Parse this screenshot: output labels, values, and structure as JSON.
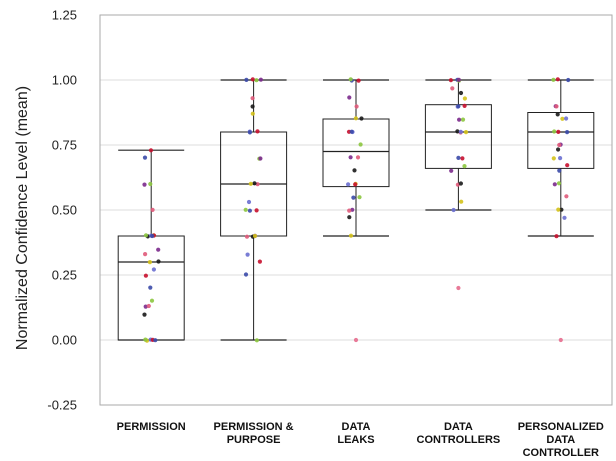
{
  "chart_data": {
    "type": "boxplot",
    "title": "",
    "xlabel": "",
    "ylabel": "Normalized Confidence Level (mean)",
    "ylim": [
      -0.25,
      1.25
    ],
    "yticks": [
      -0.25,
      0.0,
      0.25,
      0.5,
      0.75,
      1.0,
      1.25
    ],
    "ytick_labels": [
      "-0.25",
      "0.00",
      "0.25",
      "0.50",
      "0.75",
      "1.00",
      "1.25"
    ],
    "grid": "horizontal",
    "point_colors": [
      "#c8102e",
      "#3b4aa8",
      "#8cc63f",
      "#7b2a8c",
      "#e05a7a",
      "#1a1a1a",
      "#d4c21a",
      "#6a6fd0"
    ],
    "categories": [
      {
        "label": [
          "PERMISSION"
        ],
        "box": {
          "whisker_low": 0.0,
          "q1": 0.0,
          "median": 0.3,
          "q3": 0.4,
          "whisker_high": 0.73
        },
        "outliers": [],
        "points": [
          0.73,
          0.7,
          0.6,
          0.6,
          0.5,
          0.4,
          0.4,
          0.4,
          0.4,
          0.4,
          0.4,
          0.35,
          0.33,
          0.3,
          0.3,
          0.27,
          0.25,
          0.2,
          0.15,
          0.13,
          0.13,
          0.1,
          0.0,
          0.0,
          0.0,
          0.0,
          0.0
        ]
      },
      {
        "label": [
          "PERMISSION &",
          "PURPOSE"
        ],
        "box": {
          "whisker_low": 0.0,
          "q1": 0.4,
          "median": 0.6,
          "q3": 0.8,
          "whisker_high": 1.0
        },
        "outliers": [],
        "points": [
          1.0,
          1.0,
          1.0,
          1.0,
          0.93,
          0.9,
          0.87,
          0.8,
          0.8,
          0.8,
          0.7,
          0.7,
          0.6,
          0.6,
          0.6,
          0.53,
          0.5,
          0.5,
          0.5,
          0.4,
          0.4,
          0.4,
          0.4,
          0.33,
          0.3,
          0.25,
          0.0
        ]
      },
      {
        "label": [
          "DATA",
          "LEAKS"
        ],
        "box": {
          "whisker_low": 0.4,
          "q1": 0.59,
          "median": 0.725,
          "q3": 0.85,
          "whisker_high": 1.0
        },
        "outliers": [
          0.0
        ],
        "points": [
          1.0,
          1.0,
          1.0,
          0.93,
          0.9,
          0.85,
          0.85,
          0.8,
          0.8,
          0.8,
          0.75,
          0.7,
          0.7,
          0.65,
          0.6,
          0.6,
          0.6,
          0.55,
          0.55,
          0.5,
          0.5,
          0.47,
          0.4
        ]
      },
      {
        "label": [
          "DATA",
          "CONTROLLERS"
        ],
        "box": {
          "whisker_low": 0.5,
          "q1": 0.66,
          "median": 0.8,
          "q3": 0.905,
          "whisker_high": 1.0
        },
        "outliers": [
          0.2
        ],
        "points": [
          1.0,
          1.0,
          1.0,
          1.0,
          0.97,
          0.95,
          0.93,
          0.9,
          0.9,
          0.9,
          0.85,
          0.85,
          0.8,
          0.8,
          0.8,
          0.8,
          0.7,
          0.7,
          0.67,
          0.65,
          0.6,
          0.6,
          0.53,
          0.5
        ]
      },
      {
        "label": [
          "PERSONALIZED",
          "DATA",
          "CONTROLLER"
        ],
        "box": {
          "whisker_low": 0.4,
          "q1": 0.66,
          "median": 0.8,
          "q3": 0.875,
          "whisker_high": 1.0
        },
        "outliers": [
          0.0
        ],
        "points": [
          1.0,
          1.0,
          1.0,
          0.9,
          0.9,
          0.87,
          0.85,
          0.85,
          0.8,
          0.8,
          0.8,
          0.75,
          0.75,
          0.73,
          0.7,
          0.7,
          0.67,
          0.65,
          0.6,
          0.6,
          0.55,
          0.5,
          0.5,
          0.47,
          0.4
        ]
      }
    ]
  }
}
